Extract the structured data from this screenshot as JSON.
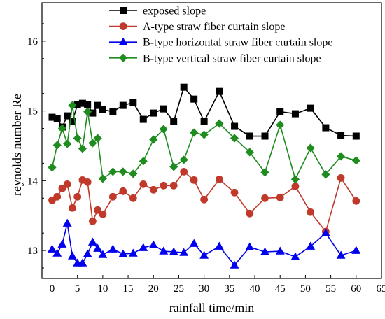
{
  "chart_data": {
    "type": "line",
    "title": "",
    "xlabel": "rainfall time/min",
    "ylabel": "reynolds number Re",
    "xlim": [
      -2,
      65
    ],
    "ylim": [
      12.6,
      16.55
    ],
    "xticks": [
      0,
      5,
      10,
      15,
      20,
      25,
      30,
      35,
      40,
      45,
      50,
      55,
      60,
      65
    ],
    "yticks": [
      13,
      14,
      15,
      16
    ],
    "grid": false,
    "legend_position": "top-right",
    "series": [
      {
        "name": "exposed slope",
        "color": "#000000",
        "marker": "square",
        "x": [
          0,
          1,
          2,
          3,
          4,
          5,
          6,
          7,
          8,
          9,
          10,
          12,
          14,
          16,
          18,
          20,
          22,
          24,
          26,
          28,
          30,
          33,
          36,
          39,
          42,
          45,
          48,
          51,
          54,
          57,
          60
        ],
        "y": [
          14.91,
          14.89,
          14.77,
          14.93,
          14.85,
          15.09,
          15.11,
          15.09,
          14.97,
          15.08,
          15.02,
          14.99,
          15.08,
          15.12,
          14.88,
          14.97,
          15.03,
          14.85,
          15.34,
          15.17,
          14.85,
          15.28,
          14.78,
          14.64,
          14.64,
          14.99,
          14.96,
          15.04,
          14.76,
          14.65,
          14.64
        ]
      },
      {
        "name": "A-type straw fiber curtain slope",
        "color": "#c0392b",
        "marker": "circle",
        "x": [
          0,
          1,
          2,
          3,
          4,
          5,
          6,
          7,
          8,
          9,
          10,
          12,
          14,
          16,
          18,
          20,
          22,
          24,
          26,
          28,
          30,
          33,
          36,
          39,
          42,
          45,
          48,
          51,
          54,
          57,
          60
        ],
        "y": [
          13.72,
          13.77,
          13.89,
          13.95,
          13.61,
          13.77,
          14.01,
          13.98,
          13.42,
          13.58,
          13.52,
          13.77,
          13.85,
          13.75,
          13.95,
          13.87,
          13.93,
          13.93,
          14.13,
          14.01,
          13.73,
          14.02,
          13.83,
          13.53,
          13.75,
          13.76,
          13.92,
          13.55,
          13.27,
          14.04,
          13.71
        ]
      },
      {
        "name": "B-type horizontal straw fiber curtain slope",
        "color": "#0000ee",
        "marker": "triangle",
        "x": [
          0,
          1,
          2,
          3,
          4,
          5,
          6,
          7,
          8,
          9,
          10,
          12,
          14,
          16,
          18,
          20,
          22,
          24,
          26,
          28,
          30,
          33,
          36,
          39,
          42,
          45,
          48,
          51,
          54,
          57,
          60
        ],
        "y": [
          13.02,
          12.96,
          13.09,
          13.39,
          12.92,
          12.82,
          12.82,
          12.95,
          13.12,
          13.03,
          12.94,
          13.02,
          12.95,
          12.96,
          13.04,
          13.08,
          12.99,
          12.98,
          12.97,
          13.1,
          12.93,
          13.06,
          12.79,
          13.05,
          12.98,
          12.99,
          12.91,
          13.06,
          13.25,
          12.93,
          13.0
        ]
      },
      {
        "name": "B-type vertical straw fiber curtain slope",
        "color": "#1e8c1e",
        "marker": "diamond",
        "x": [
          0,
          1,
          2,
          3,
          4,
          5,
          6,
          7,
          8,
          9,
          10,
          12,
          14,
          16,
          18,
          20,
          22,
          24,
          26,
          28,
          30,
          33,
          36,
          39,
          42,
          45,
          48,
          51,
          54,
          57,
          60
        ],
        "y": [
          14.19,
          14.51,
          14.75,
          14.53,
          15.08,
          14.61,
          14.46,
          14.99,
          14.54,
          14.61,
          14.03,
          14.13,
          14.13,
          14.1,
          14.28,
          14.59,
          14.74,
          14.2,
          14.3,
          14.69,
          14.66,
          14.82,
          14.61,
          14.41,
          14.12,
          14.8,
          14.02,
          14.47,
          14.09,
          14.35,
          14.29
        ]
      }
    ]
  }
}
